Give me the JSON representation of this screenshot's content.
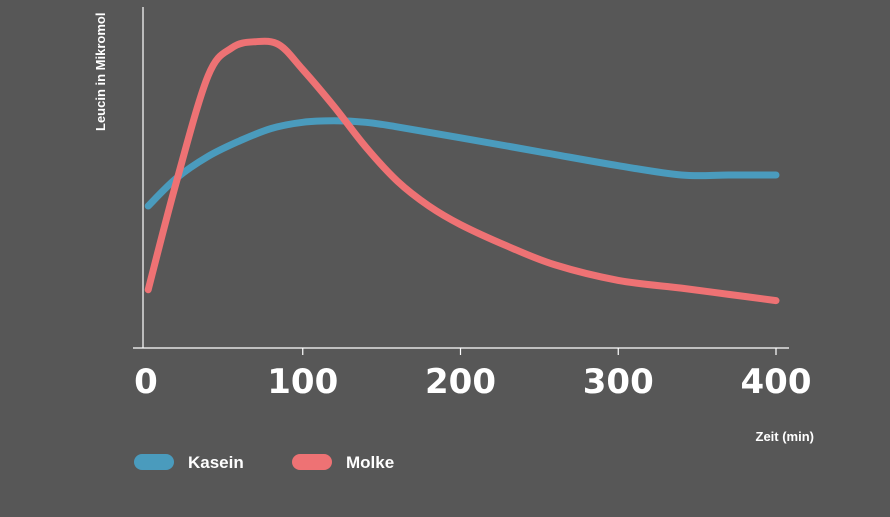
{
  "colors": {
    "background": "#575757",
    "axis": "#ffffff",
    "kasein": "#4a9bbd",
    "molke": "#ee7274"
  },
  "chart_data": {
    "type": "line",
    "title": "",
    "xlabel": "Zeit (min)",
    "ylabel": "Leucin in Mikromol",
    "xlim": [
      0,
      400
    ],
    "ylim": [
      0,
      100
    ],
    "x_ticks": [
      "0",
      "100",
      "200",
      "300",
      "400"
    ],
    "grid": false,
    "legend_position": "bottom-left",
    "series": [
      {
        "name": "Kasein",
        "color": "#4a9bbd",
        "x": [
          2,
          20,
          40,
          60,
          80,
          100,
          120,
          140,
          160,
          200,
          250,
          300,
          340,
          370,
          400
        ],
        "y": [
          40,
          49,
          56,
          61,
          65,
          67,
          67.5,
          67,
          65.5,
          62,
          57.5,
          53,
          50,
          50,
          50
        ]
      },
      {
        "name": "Molke",
        "color": "#ee7274",
        "x": [
          2,
          20,
          40,
          55,
          70,
          85,
          100,
          120,
          140,
          160,
          180,
          200,
          230,
          260,
          300,
          340,
          370,
          400
        ],
        "y": [
          13,
          48,
          82,
          91,
          93,
          92,
          84,
          72,
          59,
          48,
          40,
          34,
          27,
          21,
          16,
          13.5,
          11.5,
          9.5
        ]
      }
    ]
  }
}
